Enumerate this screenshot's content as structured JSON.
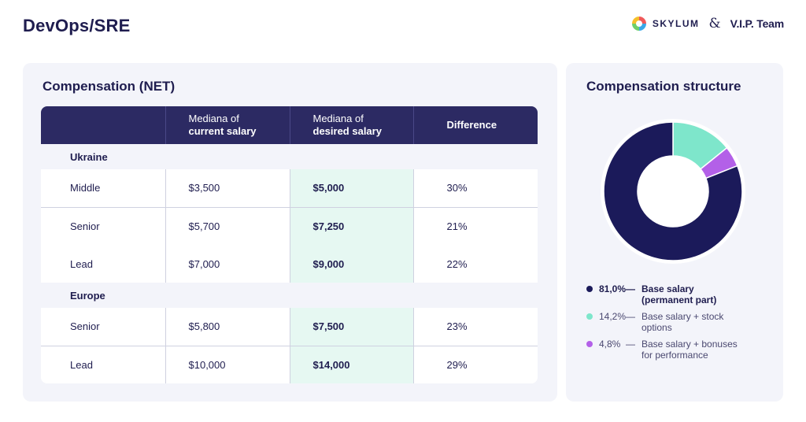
{
  "page": {
    "title": "DevOps/SRE"
  },
  "brand": {
    "partner_1": "SKYLUM",
    "ampersand": "&",
    "partner_2": "V.I.P. Team"
  },
  "compensation_table": {
    "title": "Compensation (NET)",
    "headers": {
      "current_line1": "Mediana of",
      "current_line2": "current salary",
      "desired_line1": "Mediana of",
      "desired_line2": "desired salary",
      "difference": "Difference"
    },
    "sections": [
      {
        "name": "Ukraine",
        "rows": [
          {
            "level": "Middle",
            "current": "$3,500",
            "desired": "$5,000",
            "difference": "30%"
          },
          {
            "level": "Senior",
            "current": "$5,700",
            "desired": "$7,250",
            "difference": "21%"
          },
          {
            "level": "Lead",
            "current": "$7,000",
            "desired": "$9,000",
            "difference": "22%"
          }
        ]
      },
      {
        "name": "Europe",
        "rows": [
          {
            "level": "Senior",
            "current": "$5,800",
            "desired": "$7,500",
            "difference": "23%"
          },
          {
            "level": "Lead",
            "current": "$10,000",
            "desired": "$14,000",
            "difference": "29%"
          }
        ]
      }
    ]
  },
  "chart_data": {
    "type": "pie",
    "title": "Compensation structure",
    "donut": true,
    "slices": [
      {
        "label_line1": "Base salary",
        "label_line2": "(permanent part)",
        "value": 81.0,
        "display": "81,0%",
        "color": "#1b1a5a"
      },
      {
        "label_line1": "Base salary + stock",
        "label_line2": "options",
        "value": 14.2,
        "display": "14,2%",
        "color": "#7ee6cb"
      },
      {
        "label_line1": "Base salary + bonuses",
        "label_line2": "for performance",
        "value": 4.8,
        "display": "4,8%",
        "color": "#b360e8"
      }
    ],
    "legend_dash": "—"
  }
}
